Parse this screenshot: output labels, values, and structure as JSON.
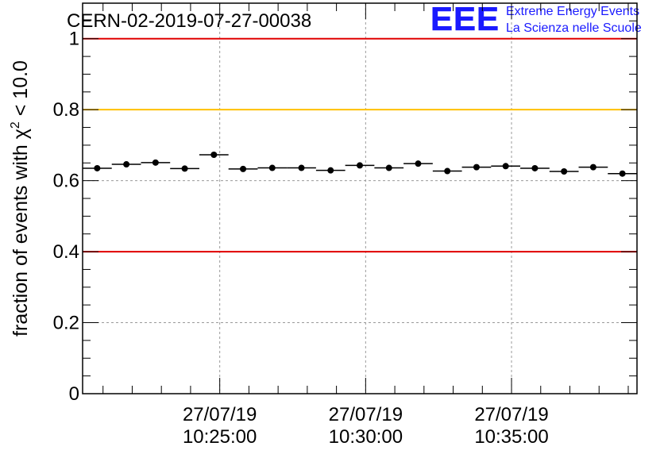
{
  "header": {
    "run_id": "CERN-02-2019-07-27-00038",
    "logo_mark": "EEE",
    "logo_line1": "Extreme Energy Events",
    "logo_line2": "La Scienza nelle Scuole"
  },
  "colors": {
    "background": "#ffffff",
    "axis": "#000000",
    "grid": "#9a9a9a",
    "data": "#000000",
    "red_threshold": "#e00000",
    "yellow_threshold": "#ffc000",
    "logo_blue": "#1a1aff"
  },
  "chart_data": {
    "type": "scatter",
    "title": "CERN-02-2019-07-27-00038",
    "xlabel": "",
    "ylabel": "fraction of events with χ² < 10.0",
    "ylabel_parts": {
      "before": "fraction of events with ",
      "symbol": "χ",
      "superscript": "2",
      "after": " < 10.0"
    },
    "ylim": [
      0,
      1.1
    ],
    "y_ticks": [
      0,
      0.2,
      0.4,
      0.6,
      0.8,
      1
    ],
    "y_tick_labels": [
      "0",
      "0.2",
      "0.4",
      "0.6",
      "0.8",
      "1"
    ],
    "x_unit": "minutes past 10:00:00 on 27/07/19",
    "xlim": [
      20.3,
      39.3
    ],
    "x_ticks": [
      {
        "x": 25,
        "date": "27/07/19",
        "time": "10:25:00"
      },
      {
        "x": 30,
        "date": "27/07/19",
        "time": "10:30:00"
      },
      {
        "x": 35,
        "date": "27/07/19",
        "time": "10:35:00"
      }
    ],
    "grid": true,
    "bin_width": 1,
    "series": [
      {
        "x": [
          20.8,
          21.8,
          22.8,
          23.8,
          24.8,
          25.8,
          26.8,
          27.8,
          28.8,
          29.8,
          30.8,
          31.8,
          32.8,
          33.8,
          34.8,
          35.8,
          36.8,
          37.8,
          38.8
        ],
        "y": [
          0.635,
          0.646,
          0.651,
          0.634,
          0.673,
          0.633,
          0.636,
          0.636,
          0.629,
          0.643,
          0.636,
          0.648,
          0.627,
          0.638,
          0.641,
          0.635,
          0.626,
          0.638,
          0.62
        ]
      }
    ],
    "reference_lines": [
      {
        "y": 1.0,
        "color": "#e00000"
      },
      {
        "y": 0.8,
        "color": "#ffc000"
      },
      {
        "y": 0.4,
        "color": "#e00000"
      }
    ]
  }
}
